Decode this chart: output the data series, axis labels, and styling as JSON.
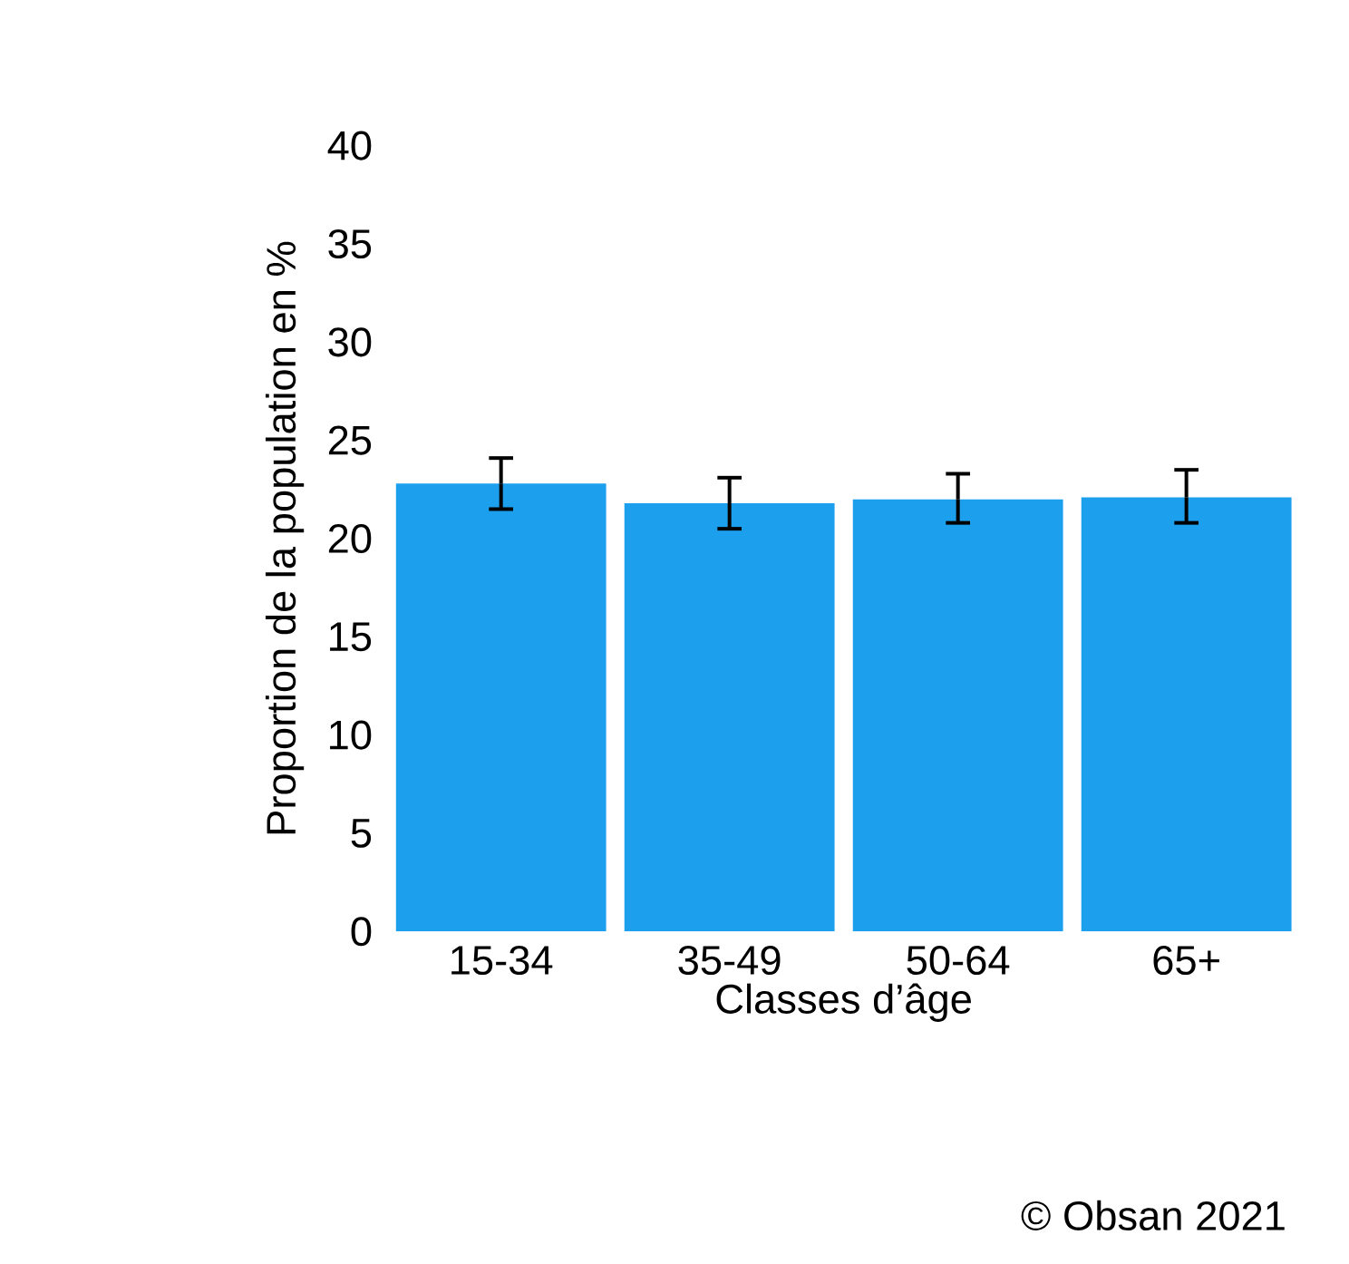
{
  "chart_data": {
    "type": "bar",
    "xlabel": "Classes d’âge",
    "ylabel": "Proportion de la population en %",
    "categories": [
      "15-34",
      "35-49",
      "50-64",
      "65+"
    ],
    "values": [
      22.8,
      21.8,
      22.0,
      22.1
    ],
    "errors": [
      [
        21.5,
        24.1
      ],
      [
        20.5,
        23.1
      ],
      [
        20.8,
        23.3
      ],
      [
        20.8,
        23.5
      ]
    ],
    "color": "#1ca0ee",
    "ylim": [
      0,
      40
    ],
    "yticks": [
      0,
      5,
      10,
      15,
      20,
      25,
      30,
      35,
      40
    ],
    "grid": false,
    "annotations": [
      "© Obsan 2021"
    ]
  }
}
